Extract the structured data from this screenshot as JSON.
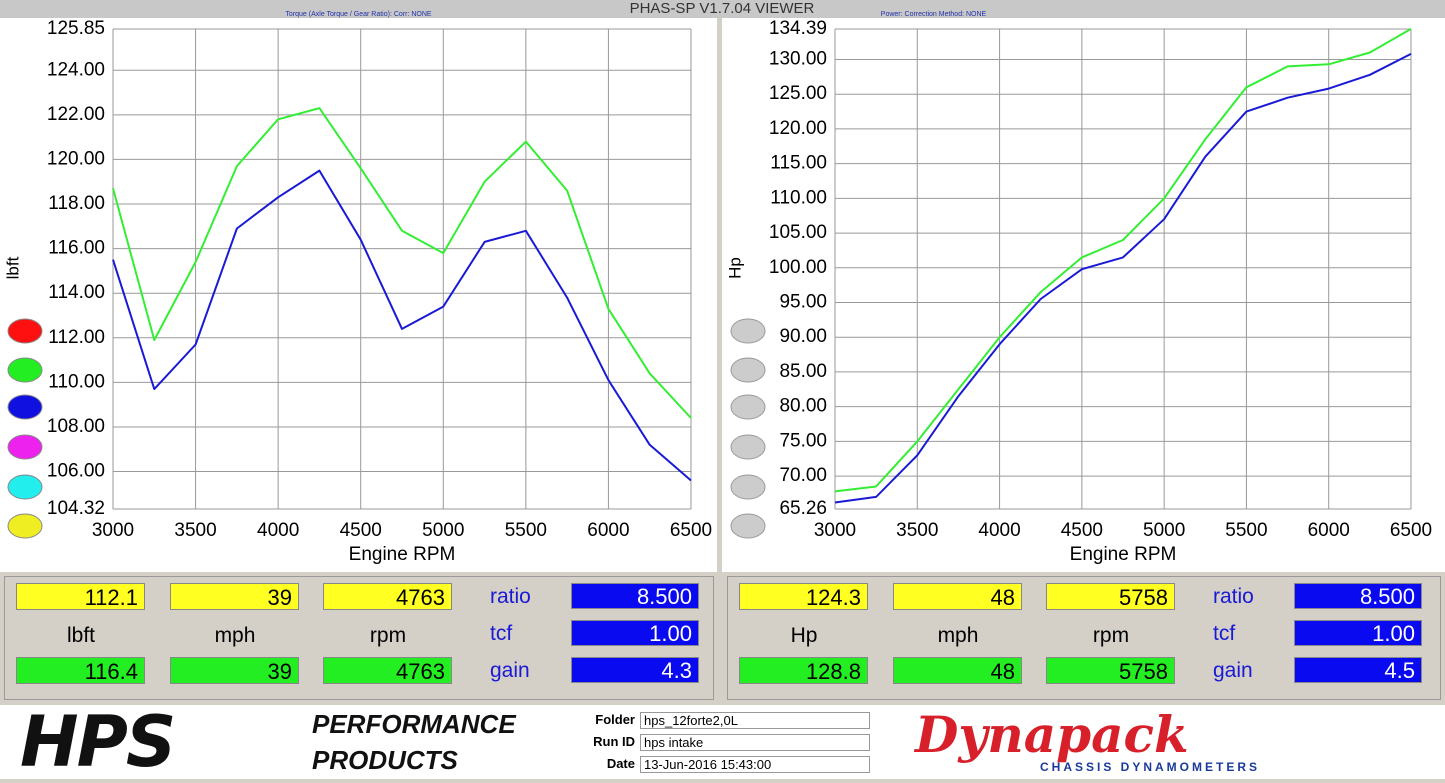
{
  "app_title": "PHAS-SP V1.7.04  VIEWER",
  "chart_data": [
    {
      "type": "line",
      "subtitle": "Torque (Axle Torque / Gear Ratio):     Corr: NONE",
      "xlabel": "Engine RPM",
      "ylabel": "lbft",
      "x": [
        3000,
        3250,
        3500,
        3750,
        4000,
        4250,
        4500,
        4750,
        5000,
        5250,
        5500,
        5750,
        6000,
        6250,
        6500
      ],
      "xlim": [
        3000,
        6500
      ],
      "xticks": [
        3000,
        3500,
        4000,
        4500,
        5000,
        5500,
        6000,
        6500
      ],
      "ylim": [
        104.32,
        125.85
      ],
      "yticks": [
        104.32,
        {
          "value": 106,
          "label": "106.00"
        },
        {
          "value": 108,
          "label": "108.00"
        },
        {
          "value": 110,
          "label": "110.00"
        },
        {
          "value": 112,
          "label": "112.00"
        },
        {
          "value": 114,
          "label": "114.00"
        },
        {
          "value": 116,
          "label": "116.00"
        },
        {
          "value": 118,
          "label": "118.00"
        },
        {
          "value": 120,
          "label": "120.00"
        },
        {
          "value": 122,
          "label": "122.00"
        },
        {
          "value": 124,
          "label": "124.00"
        },
        125.85
      ],
      "grid": true,
      "series": [
        {
          "color": "#33ee33",
          "values": [
            118.7,
            111.9,
            115.4,
            119.7,
            121.8,
            122.3,
            119.6,
            116.8,
            115.8,
            119.0,
            120.8,
            118.6,
            113.3,
            110.4,
            108.4
          ]
        },
        {
          "color": "#1a1ad6",
          "values": [
            115.5,
            109.7,
            111.7,
            116.9,
            118.3,
            119.5,
            116.4,
            112.4,
            113.4,
            116.3,
            116.8,
            113.8,
            110.1,
            107.2,
            105.6
          ]
        }
      ]
    },
    {
      "type": "line",
      "subtitle": "Power:     Correction Method: NONE",
      "xlabel": "Engine RPM",
      "ylabel": "Hp",
      "x": [
        3000,
        3250,
        3500,
        3750,
        4000,
        4250,
        4500,
        4750,
        5000,
        5250,
        5500,
        5750,
        6000,
        6250,
        6500
      ],
      "xlim": [
        3000,
        6500
      ],
      "xticks": [
        3000,
        3500,
        4000,
        4500,
        5000,
        5500,
        6000,
        6500
      ],
      "ylim": [
        65.26,
        134.39
      ],
      "yticks": [
        65.26,
        {
          "value": 70,
          "label": "70.00"
        },
        {
          "value": 75,
          "label": "75.00"
        },
        {
          "value": 80,
          "label": "80.00"
        },
        {
          "value": 85,
          "label": "85.00"
        },
        {
          "value": 90,
          "label": "90.00"
        },
        {
          "value": 95,
          "label": "95.00"
        },
        {
          "value": 100,
          "label": "100.00"
        },
        {
          "value": 105,
          "label": "105.00"
        },
        {
          "value": 110,
          "label": "110.00"
        },
        {
          "value": 115,
          "label": "115.00"
        },
        {
          "value": 120,
          "label": "120.00"
        },
        {
          "value": 125,
          "label": "125.00"
        },
        {
          "value": 130,
          "label": "130.00"
        },
        134.39
      ],
      "grid": true,
      "series": [
        {
          "color": "#33ee33",
          "values": [
            67.8,
            68.5,
            75,
            82.5,
            90,
            96.5,
            101.5,
            104,
            110,
            118.5,
            126,
            129,
            129.3,
            131,
            134.4
          ]
        },
        {
          "color": "#1a1ad6",
          "values": [
            66.2,
            67,
            73,
            81.5,
            89,
            95.5,
            99.8,
            101.5,
            107,
            116,
            122.5,
            124.5,
            125.8,
            127.8,
            130.8
          ]
        }
      ]
    }
  ],
  "panels": [
    {
      "top": [
        "112.1",
        "39",
        "4763"
      ],
      "labels": [
        "lbft",
        "mph",
        "rpm"
      ],
      "bottom": [
        "116.4",
        "39",
        "4763"
      ],
      "settings": [
        {
          "label": "ratio",
          "value": "8.500"
        },
        {
          "label": "tcf",
          "value": "1.00"
        },
        {
          "label": "gain",
          "value": "4.3"
        }
      ]
    },
    {
      "top": [
        "124.3",
        "48",
        "5758"
      ],
      "labels": [
        "Hp",
        "mph",
        "rpm"
      ],
      "bottom": [
        "128.8",
        "48",
        "5758"
      ],
      "settings": [
        {
          "label": "ratio",
          "value": "8.500"
        },
        {
          "label": "tcf",
          "value": "1.00"
        },
        {
          "label": "gain",
          "value": "4.5"
        }
      ]
    }
  ],
  "footer": {
    "brand": "HPS",
    "brand_line1": "PERFORMANCE",
    "brand_line2": "PRODUCTS",
    "fields": [
      {
        "label": "Folder",
        "value": "hps_12forte2,0L"
      },
      {
        "label": "Run ID",
        "value": "hps intake"
      },
      {
        "label": "Date",
        "value": "13-Jun-2016  15:43:00"
      }
    ],
    "dyno_brand": "Dynapack",
    "dyno_tagline": "CHASSIS  DYNAMOMETERS"
  }
}
